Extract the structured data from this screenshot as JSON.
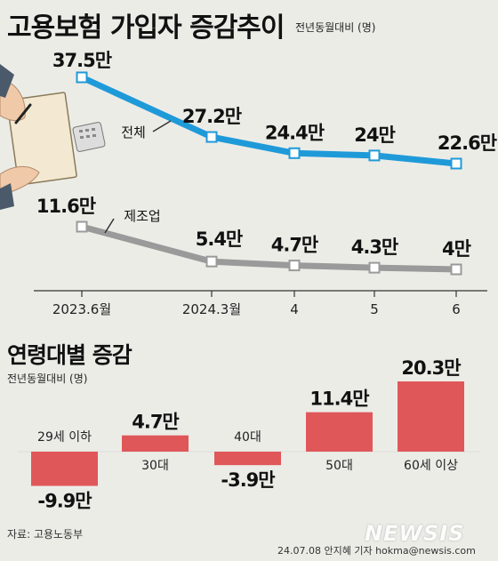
{
  "header": {
    "title": "고용보험 가입자 증감추이",
    "unit": "전년동월대비 (명)"
  },
  "section2": {
    "title": "연령대별 증감",
    "unit": "전년동월대비 (명)"
  },
  "footer": {
    "source": "자료: 고용노동부",
    "credit": "24.07.08 안지혜 기자 hokma@newsis.com",
    "logo": "NEWSIS"
  },
  "colors": {
    "background": "#ecece7",
    "total_line": "#1f9ad9",
    "manufacturing_line": "#9a9a9a",
    "age_bar": "#e0575a"
  },
  "chart_data": [
    {
      "type": "line",
      "categories": [
        "2023.6월",
        "2024.3월",
        "4",
        "5",
        "6"
      ],
      "series": [
        {
          "name": "전체",
          "values": [
            37.5,
            27.2,
            24.4,
            24,
            22.6
          ],
          "labels": [
            "37.5만",
            "27.2만",
            "24.4만",
            "24만",
            "22.6만"
          ],
          "color": "#1f9ad9"
        },
        {
          "name": "제조업",
          "values": [
            11.6,
            5.4,
            4.7,
            4.3,
            4
          ],
          "labels": [
            "11.6만",
            "5.4만",
            "4.7만",
            "4.3만",
            "4만"
          ],
          "color": "#9a9a9a"
        }
      ],
      "title": "고용보험 가입자 증감추이",
      "ylabel": "전년동월대비 (명)"
    },
    {
      "type": "bar",
      "categories": [
        "29세 이하",
        "30대",
        "40대",
        "50대",
        "60세 이상"
      ],
      "values": [
        -9.9,
        4.7,
        -3.9,
        11.4,
        20.3
      ],
      "labels": [
        "-9.9만",
        "4.7만",
        "-3.9만",
        "11.4만",
        "20.3만"
      ],
      "title": "연령대별 증감",
      "ylabel": "전년동월대비 (명)",
      "color": "#e0575a"
    }
  ]
}
